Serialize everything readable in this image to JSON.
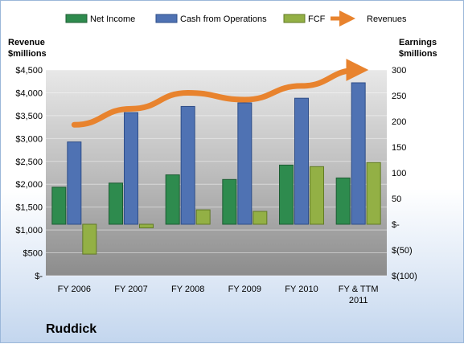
{
  "chart_data": {
    "type": "bar",
    "title": "",
    "company": "Ruddick",
    "categories": [
      "FY 2006",
      "FY 2007",
      "FY 2008",
      "FY 2009",
      "FY 2010",
      "FY & TTM 2011"
    ],
    "left_axis": {
      "label_line1": "Revenue",
      "label_line2": "$millions",
      "ylim": [
        0,
        4500
      ],
      "ticks": [
        {
          "value": 0,
          "label": "$-"
        },
        {
          "value": 500,
          "label": "$500"
        },
        {
          "value": 1000,
          "label": "$1,000"
        },
        {
          "value": 1500,
          "label": "$1,500"
        },
        {
          "value": 2000,
          "label": "$2,000"
        },
        {
          "value": 2500,
          "label": "$2,500"
        },
        {
          "value": 3000,
          "label": "$3,000"
        },
        {
          "value": 3500,
          "label": "$3,500"
        },
        {
          "value": 4000,
          "label": "$4,000"
        },
        {
          "value": 4500,
          "label": "$4,500"
        }
      ]
    },
    "right_axis": {
      "label_line1": "Earnings",
      "label_line2": "$millions",
      "ylim": [
        -100,
        300
      ],
      "ticks": [
        {
          "value": -100,
          "label": "$(100)"
        },
        {
          "value": -50,
          "label": "$(50)"
        },
        {
          "value": 0,
          "label": "$-"
        },
        {
          "value": 50,
          "label": "50"
        },
        {
          "value": 100,
          "label": "100"
        },
        {
          "value": 150,
          "label": "150"
        },
        {
          "value": 200,
          "label": "200"
        },
        {
          "value": 250,
          "label": "250"
        },
        {
          "value": 300,
          "label": "300"
        }
      ]
    },
    "series": [
      {
        "name": "Net Income",
        "axis": "right",
        "kind": "bar",
        "color": "#2e8b4e",
        "values": [
          72,
          80,
          96,
          87,
          115,
          90
        ]
      },
      {
        "name": "Cash from Operations",
        "axis": "right",
        "kind": "bar",
        "color": "#4f72b3",
        "values": [
          160,
          217,
          229,
          236,
          245,
          275
        ]
      },
      {
        "name": "FCF",
        "axis": "right",
        "kind": "bar",
        "color": "#93b045",
        "values": [
          -58,
          -7,
          28,
          25,
          112,
          120
        ]
      },
      {
        "name": "Revenues",
        "axis": "left",
        "kind": "line",
        "color": "#e8832e",
        "values": [
          3300,
          3650,
          4000,
          3850,
          4150,
          4500
        ]
      }
    ],
    "legend_position": "top"
  }
}
